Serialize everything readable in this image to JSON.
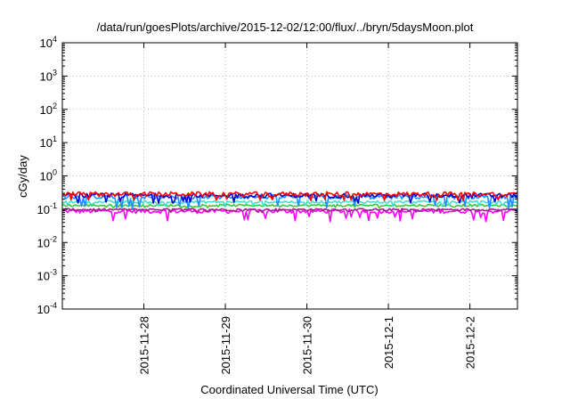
{
  "chart_data": {
    "type": "line",
    "title": "/data/run/goesPlots/archive/2015-12-02/12:00/flux/../bryn/5daysMoon.plot",
    "xlabel": "Coordinated Universal Time (UTC)",
    "ylabel": "cGy/day",
    "yscale": "log",
    "ylim": [
      0.0001,
      10000
    ],
    "y_ticks": [
      {
        "base": "10",
        "exp": "-4",
        "value": 0.0001
      },
      {
        "base": "10",
        "exp": "-3",
        "value": 0.001
      },
      {
        "base": "10",
        "exp": "-2",
        "value": 0.01
      },
      {
        "base": "10",
        "exp": "-1",
        "value": 0.1
      },
      {
        "base": "10",
        "exp": "0",
        "value": 1
      },
      {
        "base": "10",
        "exp": "1",
        "value": 10
      },
      {
        "base": "10",
        "exp": "2",
        "value": 100
      },
      {
        "base": "10",
        "exp": "3",
        "value": 1000
      },
      {
        "base": "10",
        "exp": "4",
        "value": 10000
      }
    ],
    "xlim": [
      "2015-11-27T00:00",
      "2015-12-02T14:00"
    ],
    "x_ticks": [
      {
        "label": "2015-11-28",
        "date": "2015-11-28T00:00"
      },
      {
        "label": "2015-11-29",
        "date": "2015-11-29T00:00"
      },
      {
        "label": "2015-11-30",
        "date": "2015-11-30T00:00"
      },
      {
        "label": "2015-12-1",
        "date": "2015-12-01T00:00"
      },
      {
        "label": "2015-12-2",
        "date": "2015-12-02T00:00"
      }
    ],
    "grid": true,
    "legend": "none",
    "series": [
      {
        "color": "#ff00ff",
        "levels": [
          0.075,
          0.1
        ],
        "dips": [
          0.04,
          0.06
        ]
      },
      {
        "color": "#a0208c",
        "levels": [
          0.09,
          0.105
        ],
        "dips": [
          0.08,
          0.09
        ]
      },
      {
        "color": "#32cd32",
        "levels": [
          0.12,
          0.14
        ],
        "dips": [
          0.11,
          0.12
        ]
      },
      {
        "color": "#40e0d0",
        "levels": [
          0.15,
          0.18
        ],
        "dips": [
          0.12,
          0.14
        ]
      },
      {
        "color": "#1e90ff",
        "levels": [
          0.2,
          0.27
        ],
        "dips": [
          0.1,
          0.13
        ]
      },
      {
        "color": "#0000cd",
        "levels": [
          0.22,
          0.3
        ],
        "dips": [
          0.15,
          0.18
        ]
      },
      {
        "color": "#ff0000",
        "levels": [
          0.24,
          0.33
        ],
        "dips": [
          0.18,
          0.2
        ]
      }
    ]
  }
}
